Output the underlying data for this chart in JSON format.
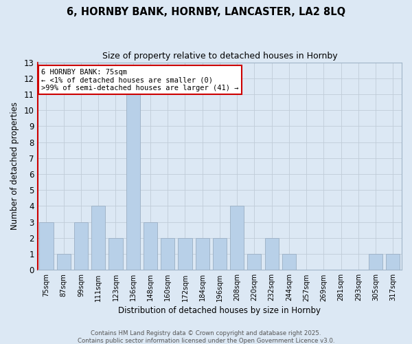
{
  "title": "6, HORNBY BANK, HORNBY, LANCASTER, LA2 8LQ",
  "subtitle": "Size of property relative to detached houses in Hornby",
  "xlabel": "Distribution of detached houses by size in Hornby",
  "ylabel": "Number of detached properties",
  "bar_color": "#b8d0e8",
  "highlight_color": "#b8d0e8",
  "background_color": "#dce8f4",
  "categories": [
    "75sqm",
    "87sqm",
    "99sqm",
    "111sqm",
    "123sqm",
    "136sqm",
    "148sqm",
    "160sqm",
    "172sqm",
    "184sqm",
    "196sqm",
    "208sqm",
    "220sqm",
    "232sqm",
    "244sqm",
    "257sqm",
    "269sqm",
    "281sqm",
    "293sqm",
    "305sqm",
    "317sqm"
  ],
  "values": [
    3,
    1,
    3,
    4,
    2,
    11,
    3,
    2,
    2,
    2,
    2,
    4,
    1,
    2,
    1,
    0,
    0,
    0,
    0,
    1,
    1
  ],
  "highlight_index": 0,
  "ylim": [
    0,
    13
  ],
  "yticks": [
    0,
    1,
    2,
    3,
    4,
    5,
    6,
    7,
    8,
    9,
    10,
    11,
    12,
    13
  ],
  "annotation_lines": [
    "6 HORNBY BANK: 75sqm",
    "← <1% of detached houses are smaller (0)",
    ">99% of semi-detached houses are larger (41) →"
  ],
  "ann_box_color": "white",
  "ann_edge_color": "#cc0000",
  "footer_lines": [
    "Contains HM Land Registry data © Crown copyright and database right 2025.",
    "Contains public sector information licensed under the Open Government Licence v3.0."
  ],
  "grid_color": "#c0ccd8",
  "spine_left_color": "#cc0000",
  "spine_other_color": "#a0b4c8"
}
